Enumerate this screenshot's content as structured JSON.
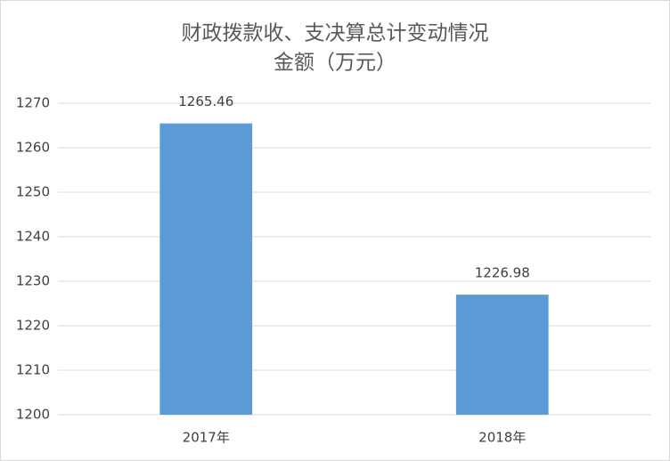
{
  "chart_data": {
    "type": "bar",
    "title": "财政拨款收、支决算总计变动情况",
    "subtitle": "金额（万元）",
    "categories": [
      "2017年",
      "2018年"
    ],
    "values": [
      1265.46,
      1226.98
    ],
    "color": "#5b9bd5",
    "ylim": [
      1200,
      1270
    ],
    "yticks": [
      1200,
      1210,
      1220,
      1230,
      1240,
      1250,
      1260,
      1270
    ],
    "grid": true
  }
}
